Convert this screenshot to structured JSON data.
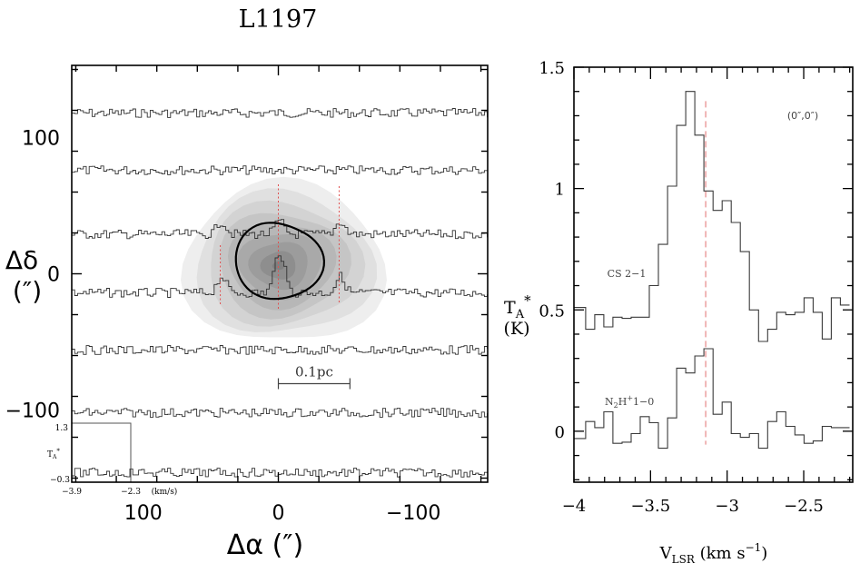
{
  "title": "L1197",
  "chart_data": [
    {
      "type": "map",
      "description": "Spectral grid map overlaid on gray-scale integrated intensity contours",
      "xlabel": "Δα (″)",
      "ylabel_line1": "Δδ",
      "ylabel_line2": "(″)",
      "xlim": [
        153,
        -155
      ],
      "ylim": [
        -153,
        153
      ],
      "xticks": [
        100,
        0,
        -100
      ],
      "xtick_labels": [
        "100",
        "0",
        "−100"
      ],
      "yticks": [
        100,
        0,
        -100
      ],
      "ytick_labels": [
        "100",
        "0",
        "−100"
      ],
      "spectra_row_offsets": [
        118,
        76,
        29,
        -14,
        -56,
        -102,
        -146
      ],
      "peak_markers_x": [
        43,
        0,
        -45
      ],
      "core_center": [
        0,
        6
      ],
      "scale_bar": {
        "label": "0.1pc",
        "x_from": 0,
        "x_to": -53,
        "y": -80
      },
      "inset": {
        "ymax_label": "1.3",
        "ylabel": "T_A*",
        "ymin_label": "−0.3",
        "xmin_label": "−3.9",
        "xmax_label": "−2.3",
        "xunit_label": "(km/s)"
      },
      "colors": {
        "contour": "#000000",
        "fill": "#7a7a7a",
        "marker": "#e05050",
        "spectra": "#333333"
      }
    },
    {
      "type": "line",
      "style": "step",
      "position_label": "(0″,0″)",
      "xlabel": "V_LSR (km s^-1)",
      "ylabel": "T_A* (K)",
      "xlim": [
        -4.0,
        -2.18
      ],
      "ylim": [
        -0.21,
        1.5
      ],
      "xticks": [
        -4,
        -3.5,
        -3,
        -2.5
      ],
      "xtick_labels": [
        "−4",
        "−3.5",
        "−3",
        "−2.5"
      ],
      "yticks": [
        0,
        0.5,
        1,
        1.5
      ],
      "ytick_labels": [
        "0",
        "0.5",
        "1",
        "1.5"
      ],
      "reference_velocity": -3.14,
      "channel_width": 0.0594,
      "x_start": -3.983,
      "series": [
        {
          "name": "CS 2−1",
          "values": [
            0.51,
            0.42,
            0.48,
            0.43,
            0.47,
            0.465,
            0.47,
            0.47,
            0.6,
            0.77,
            1.01,
            1.26,
            1.4,
            1.22,
            0.99,
            0.91,
            0.95,
            0.86,
            0.74,
            0.5,
            0.37,
            0.42,
            0.49,
            0.48,
            0.49,
            0.55,
            0.49,
            0.38,
            0.55,
            0.52
          ]
        },
        {
          "name": "N2H+ 1−0",
          "values": [
            -0.03,
            0.04,
            0.015,
            0.08,
            -0.05,
            -0.045,
            -0.01,
            0.06,
            0.035,
            -0.07,
            0.055,
            0.26,
            0.24,
            0.31,
            0.34,
            0.07,
            0.12,
            -0.01,
            -0.025,
            -0.01,
            -0.07,
            0.04,
            0.08,
            0.02,
            -0.015,
            -0.05,
            -0.04,
            0.02,
            0.015,
            0.015
          ]
        }
      ],
      "colors": {
        "spectra": "#333333",
        "reference": "#e07070"
      }
    }
  ]
}
